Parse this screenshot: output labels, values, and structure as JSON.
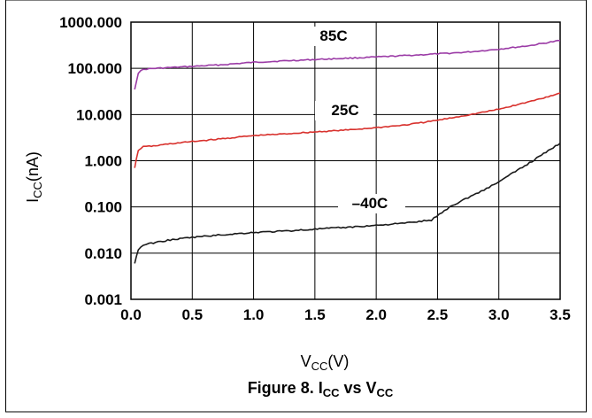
{
  "chart_data": {
    "type": "line",
    "title": "",
    "caption": {
      "main": "Figure 8. I",
      "sub1": "CC",
      "mid": " vs V",
      "sub2": "CC"
    },
    "xlabel": {
      "main": "V",
      "sub": "CC",
      "unit": "(V)"
    },
    "ylabel": {
      "main": "I",
      "sub": "CC",
      "unit": "(nA)"
    },
    "xlim": [
      0.0,
      3.5
    ],
    "ylim": [
      0.001,
      1000
    ],
    "yscale": "log",
    "grid": true,
    "xticks": [
      "0.0",
      "0.5",
      "1.0",
      "1.5",
      "2.0",
      "2.5",
      "3.0",
      "3.5"
    ],
    "yticks": [
      "0.001",
      "0.010",
      "0.100",
      "1.000",
      "10.000",
      "100.000",
      "1000.000"
    ],
    "colors": {
      "85C": "#9b3ba6",
      "25C": "#d8312d",
      "-40C": "#1a1a1a"
    },
    "series": [
      {
        "name": "85C",
        "label_text": "85C",
        "x": [
          0.03,
          0.06,
          0.1,
          0.15,
          0.2,
          0.3,
          0.5,
          0.75,
          1.0,
          1.25,
          1.5,
          1.75,
          2.0,
          2.25,
          2.5,
          2.75,
          3.0,
          3.25,
          3.5
        ],
        "y": [
          35,
          80,
          95,
          98,
          100,
          103,
          110,
          120,
          135,
          145,
          155,
          165,
          175,
          190,
          205,
          225,
          260,
          310,
          400
        ]
      },
      {
        "name": "25C",
        "label_text": "25C",
        "x": [
          0.03,
          0.06,
          0.1,
          0.15,
          0.2,
          0.3,
          0.5,
          0.75,
          1.0,
          1.25,
          1.5,
          1.75,
          2.0,
          2.25,
          2.5,
          2.75,
          3.0,
          3.25,
          3.5
        ],
        "y": [
          0.7,
          1.7,
          2.0,
          2.05,
          2.1,
          2.3,
          2.6,
          3.0,
          3.5,
          3.8,
          4.2,
          4.6,
          5.2,
          6.0,
          7.5,
          9.8,
          13,
          19,
          29
        ]
      },
      {
        "name": "-40C",
        "label_text": "–40C",
        "x": [
          0.03,
          0.06,
          0.1,
          0.15,
          0.2,
          0.3,
          0.5,
          0.75,
          1.0,
          1.25,
          1.5,
          1.75,
          2.0,
          2.25,
          2.45,
          2.6,
          2.75,
          2.9,
          3.0,
          3.25,
          3.5
        ],
        "y": [
          0.006,
          0.012,
          0.015,
          0.016,
          0.017,
          0.019,
          0.022,
          0.025,
          0.028,
          0.03,
          0.033,
          0.036,
          0.04,
          0.045,
          0.052,
          0.1,
          0.16,
          0.25,
          0.35,
          0.9,
          2.4
        ]
      }
    ]
  }
}
